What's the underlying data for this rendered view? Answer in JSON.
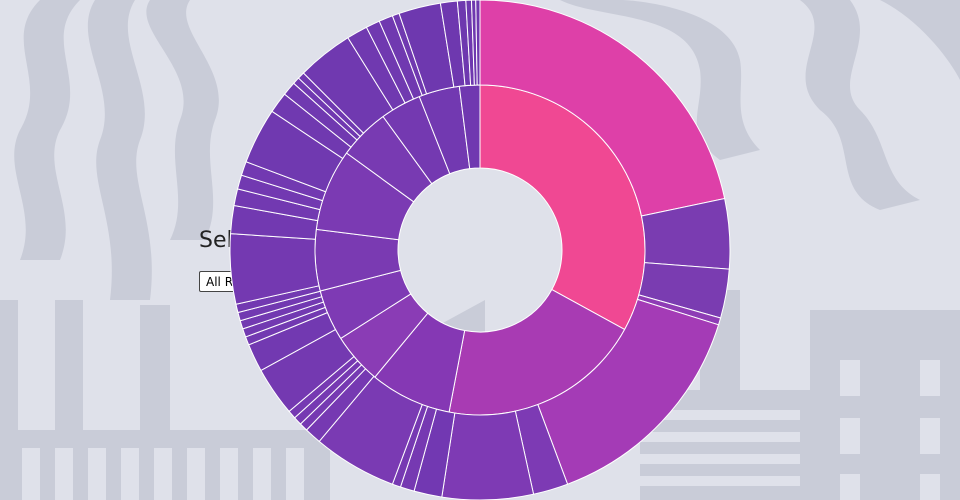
{
  "selector": {
    "label": "Sel",
    "selected_option": "All R"
  },
  "colors": {
    "background": "#dfe1ea",
    "silhouette": "#c9ccd8",
    "silhouette_dark": "#bfc3d0",
    "ring_stroke": "#ffffff"
  },
  "chart_data": {
    "type": "sunburst",
    "title": "",
    "rings": [
      {
        "level": 1,
        "segments": [
          {
            "value": 33.0,
            "color": "#f04893"
          },
          {
            "value": 20.0,
            "color": "#a83bb3"
          },
          {
            "value": 8.0,
            "color": "#8538b4"
          },
          {
            "value": 5.0,
            "color": "#8a3cb5"
          },
          {
            "value": 5.0,
            "color": "#7e3ab4"
          },
          {
            "value": 6.0,
            "color": "#7a3ab2"
          },
          {
            "value": 8.0,
            "color": "#7b3ab3"
          },
          {
            "value": 5.0,
            "color": "#783ab2"
          },
          {
            "value": 4.0,
            "color": "#7439b1"
          },
          {
            "value": 4.0,
            "color": "#7239b1"
          },
          {
            "value": 2.0,
            "color": "#7038b0"
          }
        ]
      },
      {
        "level": 2,
        "segments": [
          {
            "value": 24.0,
            "color": "#de40a8"
          },
          {
            "value": 5.0,
            "color": "#7a3cb1"
          },
          {
            "value": 3.5,
            "color": "#7a3cb1"
          },
          {
            "value": 0.5,
            "color": "#8e3cb5"
          },
          {
            "value": 16.0,
            "color": "#a43bb6"
          },
          {
            "value": 2.5,
            "color": "#7d3ab4"
          },
          {
            "value": 6.5,
            "color": "#7e3ab4"
          },
          {
            "value": 2.0,
            "color": "#7238b2"
          },
          {
            "value": 1.0,
            "color": "#7639b2"
          },
          {
            "value": 0.6,
            "color": "#7639b2"
          },
          {
            "value": 6.0,
            "color": "#7a3ab3"
          },
          {
            "value": 1.2,
            "color": "#7639b2"
          },
          {
            "value": 0.6,
            "color": "#7639b2"
          },
          {
            "value": 0.6,
            "color": "#7639b2"
          },
          {
            "value": 0.6,
            "color": "#7639b2"
          },
          {
            "value": 3.5,
            "color": "#7439b1"
          },
          {
            "value": 2.0,
            "color": "#7239b1"
          },
          {
            "value": 0.6,
            "color": "#7239b1"
          },
          {
            "value": 0.6,
            "color": "#7239b1"
          },
          {
            "value": 0.6,
            "color": "#7239b1"
          },
          {
            "value": 0.6,
            "color": "#7239b1"
          },
          {
            "value": 0.6,
            "color": "#7239b1"
          },
          {
            "value": 5.0,
            "color": "#7439b1"
          },
          {
            "value": 2.0,
            "color": "#7239b1"
          },
          {
            "value": 1.2,
            "color": "#7239b1"
          },
          {
            "value": 1.0,
            "color": "#7239b1"
          },
          {
            "value": 1.0,
            "color": "#7239b1"
          },
          {
            "value": 4.0,
            "color": "#7039b0"
          },
          {
            "value": 1.5,
            "color": "#7039b0"
          },
          {
            "value": 1.0,
            "color": "#7039b0"
          },
          {
            "value": 0.5,
            "color": "#7039b0"
          },
          {
            "value": 0.5,
            "color": "#7039b0"
          },
          {
            "value": 4.0,
            "color": "#7039b0"
          },
          {
            "value": 1.5,
            "color": "#7039b0"
          },
          {
            "value": 1.0,
            "color": "#7039b0"
          },
          {
            "value": 1.0,
            "color": "#7039b0"
          },
          {
            "value": 0.5,
            "color": "#7039b0"
          },
          {
            "value": 3.0,
            "color": "#6e38af"
          },
          {
            "value": 1.2,
            "color": "#6e38af"
          },
          {
            "value": 0.6,
            "color": "#6e38af"
          },
          {
            "value": 0.4,
            "color": "#6e38af"
          },
          {
            "value": 0.3,
            "color": "#6e38af"
          },
          {
            "value": 0.3,
            "color": "#6e38af"
          }
        ]
      }
    ]
  }
}
